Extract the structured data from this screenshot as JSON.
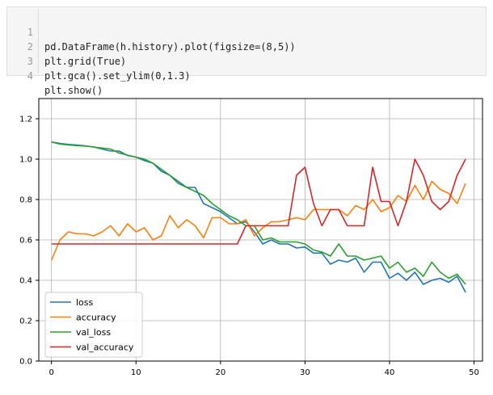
{
  "code": {
    "lines": [
      {
        "n": "1",
        "text": "pd.DataFrame(h.history).plot(figsize=(8,5))"
      },
      {
        "n": "2",
        "text": "plt.grid(True)"
      },
      {
        "n": "3",
        "text": "plt.gca().set_ylim(0,1.3)"
      },
      {
        "n": "4",
        "text": "plt.show()"
      }
    ]
  },
  "chart_data": {
    "type": "line",
    "title": "",
    "xlabel": "",
    "ylabel": "",
    "xlim": [
      -1.5,
      51
    ],
    "ylim": [
      0,
      1.3
    ],
    "xticks": [
      0,
      10,
      20,
      30,
      40,
      50
    ],
    "xtick_labels": [
      "0",
      "10",
      "20",
      "30",
      "40",
      "50"
    ],
    "yticks": [
      0.0,
      0.2,
      0.4,
      0.6,
      0.8,
      1.0,
      1.2
    ],
    "ytick_labels": [
      "0.0",
      "0.2",
      "0.4",
      "0.6",
      "0.8",
      "1.0",
      "1.2"
    ],
    "grid": true,
    "legend_position": "lower-left",
    "x": [
      0,
      1,
      2,
      3,
      4,
      5,
      6,
      7,
      8,
      9,
      10,
      11,
      12,
      13,
      14,
      15,
      16,
      17,
      18,
      19,
      20,
      21,
      22,
      23,
      24,
      25,
      26,
      27,
      28,
      29,
      30,
      31,
      32,
      33,
      34,
      35,
      36,
      37,
      38,
      39,
      40,
      41,
      42,
      43,
      44,
      45,
      46,
      47,
      48,
      49
    ],
    "series": [
      {
        "name": "loss",
        "color": "#1f77b4",
        "values": [
          1.085,
          1.078,
          1.073,
          1.07,
          1.066,
          1.06,
          1.05,
          1.04,
          1.04,
          1.018,
          1.01,
          0.993,
          0.98,
          0.94,
          0.92,
          0.89,
          0.86,
          0.86,
          0.78,
          0.76,
          0.74,
          0.71,
          0.68,
          0.69,
          0.64,
          0.58,
          0.6,
          0.58,
          0.58,
          0.56,
          0.565,
          0.535,
          0.535,
          0.48,
          0.5,
          0.49,
          0.51,
          0.44,
          0.49,
          0.49,
          0.41,
          0.435,
          0.4,
          0.44,
          0.38,
          0.4,
          0.41,
          0.39,
          0.42,
          0.34
        ]
      },
      {
        "name": "accuracy",
        "color": "#ff7f0e",
        "values": [
          0.5,
          0.6,
          0.64,
          0.63,
          0.63,
          0.62,
          0.64,
          0.67,
          0.62,
          0.68,
          0.64,
          0.66,
          0.6,
          0.62,
          0.72,
          0.66,
          0.7,
          0.67,
          0.61,
          0.71,
          0.71,
          0.68,
          0.68,
          0.7,
          0.62,
          0.66,
          0.69,
          0.69,
          0.7,
          0.71,
          0.7,
          0.75,
          0.75,
          0.75,
          0.75,
          0.72,
          0.77,
          0.75,
          0.8,
          0.74,
          0.76,
          0.82,
          0.79,
          0.87,
          0.8,
          0.89,
          0.85,
          0.83,
          0.78,
          0.88
        ]
      },
      {
        "name": "val_loss",
        "color": "#2ca02c",
        "values": [
          1.085,
          1.075,
          1.07,
          1.067,
          1.065,
          1.06,
          1.055,
          1.05,
          1.03,
          1.02,
          1.01,
          1.0,
          0.98,
          0.95,
          0.92,
          0.88,
          0.86,
          0.84,
          0.82,
          0.78,
          0.75,
          0.72,
          0.7,
          0.67,
          0.67,
          0.6,
          0.61,
          0.59,
          0.59,
          0.59,
          0.58,
          0.55,
          0.54,
          0.52,
          0.58,
          0.52,
          0.52,
          0.5,
          0.51,
          0.52,
          0.46,
          0.49,
          0.44,
          0.46,
          0.42,
          0.49,
          0.44,
          0.41,
          0.43,
          0.38
        ]
      },
      {
        "name": "val_accuracy",
        "color": "#d62728",
        "values": [
          0.58,
          0.58,
          0.58,
          0.58,
          0.58,
          0.58,
          0.58,
          0.58,
          0.58,
          0.58,
          0.58,
          0.58,
          0.58,
          0.58,
          0.58,
          0.58,
          0.58,
          0.58,
          0.58,
          0.58,
          0.58,
          0.58,
          0.58,
          0.67,
          0.67,
          0.67,
          0.67,
          0.67,
          0.67,
          0.92,
          0.96,
          0.78,
          0.67,
          0.75,
          0.75,
          0.67,
          0.67,
          0.67,
          0.96,
          0.79,
          0.79,
          0.67,
          0.79,
          1.0,
          0.92,
          0.79,
          0.75,
          0.79,
          0.92,
          1.0
        ]
      }
    ]
  }
}
